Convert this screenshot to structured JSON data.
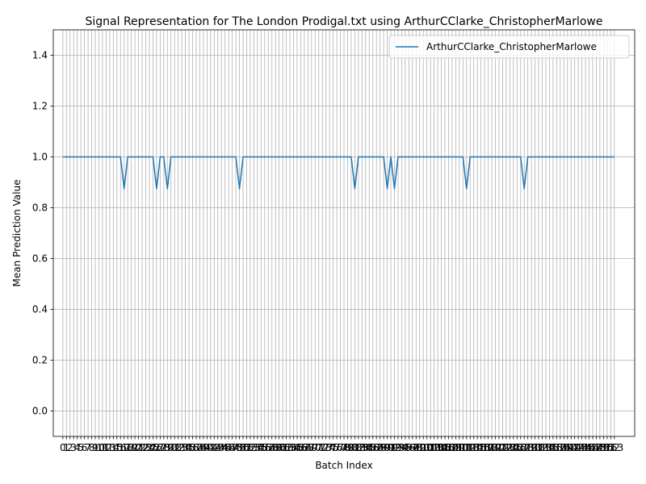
{
  "chart_data": {
    "type": "line",
    "title": "Signal Representation for The London Prodigal.txt using ArthurCClarke_ChristopherMarlowe",
    "xlabel": "Batch Index",
    "ylabel": "Mean Prediction Value",
    "xlim": [
      -2.65,
      158.65
    ],
    "ylim": [
      -0.1,
      1.5
    ],
    "yticks": [
      0.0,
      0.2,
      0.4,
      0.6,
      0.8,
      1.0,
      1.2,
      1.4
    ],
    "ytick_labels": [
      "0.0",
      "0.2",
      "0.4",
      "0.6",
      "0.8",
      "1.0",
      "1.2",
      "1.4"
    ],
    "x_start": 0,
    "x_end": 153,
    "x_step": 1,
    "baseline_value": 1.0,
    "dips": [
      {
        "x": 17,
        "y": 0.875
      },
      {
        "x": 26,
        "y": 0.875
      },
      {
        "x": 29,
        "y": 0.875
      },
      {
        "x": 49,
        "y": 0.875
      },
      {
        "x": 81,
        "y": 0.875
      },
      {
        "x": 90,
        "y": 0.875
      },
      {
        "x": 92,
        "y": 0.875
      },
      {
        "x": 112,
        "y": 0.875
      },
      {
        "x": 128,
        "y": 0.875
      }
    ],
    "grid": true,
    "legend_position": "top-right",
    "series": [
      {
        "name": "ArthurCClarke_ChristopherMarlowe",
        "color": "#1f77b4"
      }
    ]
  }
}
